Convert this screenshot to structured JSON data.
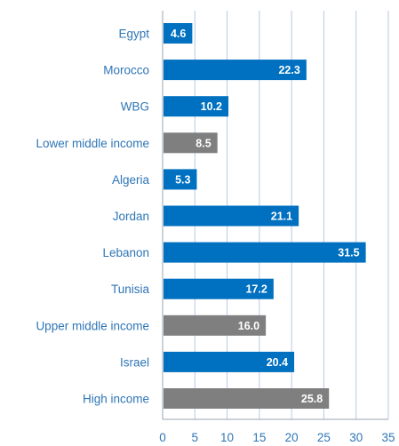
{
  "chart_data": {
    "type": "bar",
    "orientation": "horizontal",
    "categories": [
      "Egypt",
      "Morocco",
      "WBG",
      "Lower middle income",
      "Algeria",
      "Jordan",
      "Lebanon",
      "Tunisia",
      "Upper middle income",
      "Israel",
      "High income"
    ],
    "values": [
      4.6,
      22.3,
      10.2,
      8.5,
      5.3,
      21.1,
      31.5,
      17.2,
      16.0,
      20.4,
      25.8
    ],
    "value_labels": [
      "4.6",
      "22.3",
      "10.2",
      "8.5",
      "5.3",
      "21.1",
      "31.5",
      "17.2",
      "16.0",
      "20.4",
      "25.8"
    ],
    "group": [
      "country",
      "country",
      "country",
      "income",
      "country",
      "country",
      "country",
      "country",
      "income",
      "country",
      "income"
    ],
    "xlim": [
      0,
      35
    ],
    "x_ticks": [
      "0",
      "5",
      "10",
      "15",
      "20",
      "25",
      "30",
      "35"
    ],
    "grid": "vertical",
    "title": "",
    "xlabel": "",
    "ylabel": "",
    "colors": {
      "country": "#0070c0",
      "income": "#7f7f7f",
      "label_text": "#2e75b6",
      "grid": "#b8c9e6",
      "axis": "#9aa4b0"
    }
  }
}
